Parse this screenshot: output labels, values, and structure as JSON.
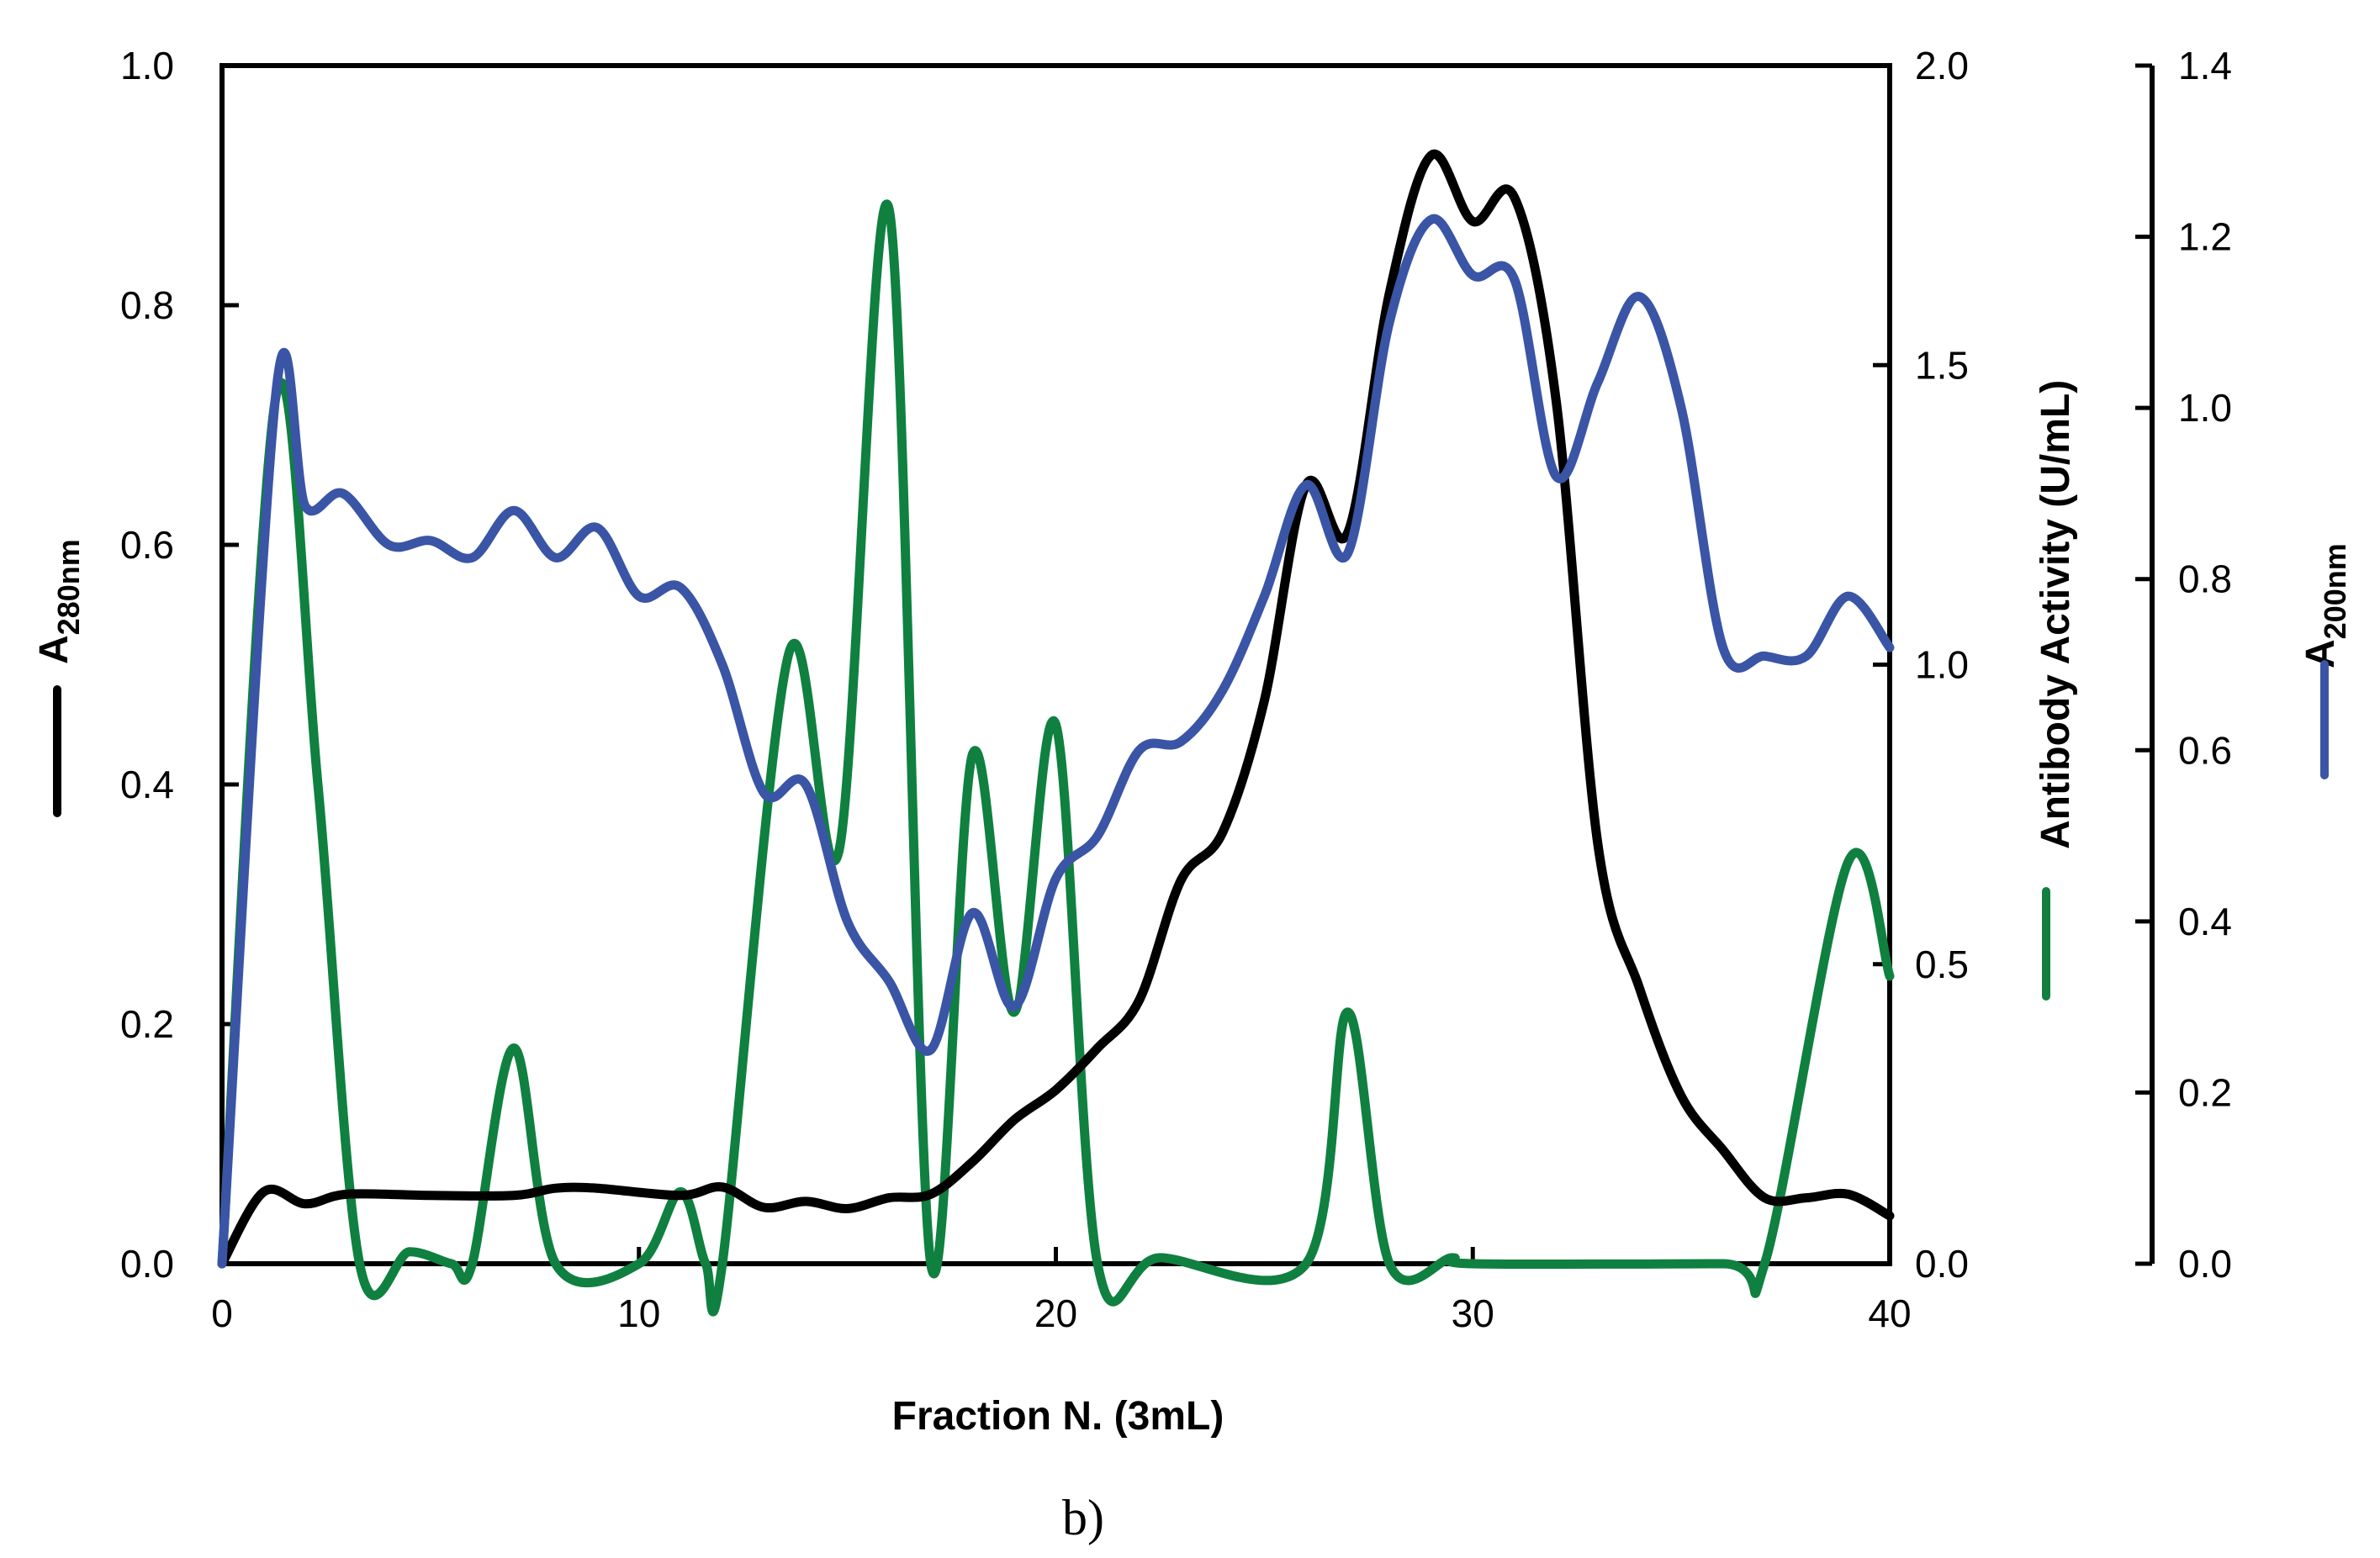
{
  "figure": {
    "panel_label": "b)",
    "xlabel": "Fraction N. (3mL)",
    "left_axis": {
      "label_main": "A",
      "label_sub": "280nm",
      "color": "#000000",
      "range": [
        0,
        1.0
      ],
      "ticks": [
        "0.0",
        "0.2",
        "0.4",
        "0.6",
        "0.8",
        "1.0"
      ]
    },
    "right_axis_1": {
      "label": "Antibody Activity (U/mL)",
      "color": "#0f8040",
      "range": [
        0,
        2.0
      ],
      "ticks": [
        "0.0",
        "0.5",
        "1.0",
        "1.5",
        "2.0"
      ]
    },
    "right_axis_2": {
      "label_main": "A",
      "label_sub": "200nm",
      "color": "#3a55a5",
      "range": [
        0,
        1.4
      ],
      "ticks": [
        "0.0",
        "0.2",
        "0.4",
        "0.6",
        "0.8",
        "1.0",
        "1.2",
        "1.4"
      ]
    },
    "x_ticks": [
      "0",
      "10",
      "20",
      "30",
      "40"
    ]
  },
  "chart_data": {
    "type": "line",
    "title": "",
    "xlabel": "Fraction N. (3mL)",
    "ylabel": "A280nm",
    "y2label": "Antibody Activity (U/mL)",
    "y3label": "A200nm",
    "xlim": [
      0,
      40
    ],
    "ylim": [
      0,
      1.0
    ],
    "y2lim": [
      0,
      2.0
    ],
    "y3lim": [
      0,
      1.4
    ],
    "grid": false,
    "legend": "axis-line swatches next to each axis title",
    "series": [
      {
        "name": "A280nm",
        "axis": "left",
        "color": "#000000",
        "x": [
          0,
          1,
          2,
          3,
          5,
          7,
          8,
          9,
          11,
          12,
          13,
          14,
          15,
          16,
          17,
          18,
          19,
          20,
          21,
          22,
          23,
          24,
          25,
          26,
          27,
          28,
          29,
          30,
          31,
          32,
          33,
          34,
          35,
          36,
          37,
          38,
          39,
          40
        ],
        "values": [
          0.0,
          0.06,
          0.05,
          0.058,
          0.057,
          0.057,
          0.063,
          0.063,
          0.057,
          0.064,
          0.047,
          0.052,
          0.046,
          0.055,
          0.058,
          0.085,
          0.12,
          0.145,
          0.18,
          0.22,
          0.32,
          0.36,
          0.47,
          0.65,
          0.61,
          0.81,
          0.925,
          0.87,
          0.89,
          0.72,
          0.35,
          0.23,
          0.14,
          0.095,
          0.055,
          0.055,
          0.058,
          0.04
        ]
      },
      {
        "name": "Antibody Activity (U/mL)",
        "axis": "right1",
        "color": "#0f8040",
        "x": [
          0,
          1.3,
          2.3,
          3.3,
          4.5,
          5.5,
          6,
          7,
          8,
          10,
          11,
          11.6,
          12,
          13.6,
          14.8,
          16,
          17,
          18,
          19,
          20,
          21,
          22.5,
          26,
          27,
          28,
          29.5,
          30,
          36,
          37,
          39,
          40
        ],
        "values": [
          0,
          1.45,
          0.8,
          0,
          0.02,
          0,
          0,
          0.36,
          0,
          0,
          0.12,
          0,
          0,
          1.02,
          0.69,
          1.76,
          0,
          0.85,
          0.42,
          0.9,
          0,
          0.01,
          0,
          0.42,
          0,
          0.01,
          0,
          0,
          0,
          0.67,
          0.48
        ]
      },
      {
        "name": "A200nm",
        "axis": "right2",
        "color": "#3a55a5",
        "x": [
          0,
          1.3,
          2,
          2.9,
          4,
          5,
          6,
          7,
          8,
          9,
          10,
          11,
          12,
          13,
          14,
          15,
          16,
          17,
          18,
          19,
          20,
          21,
          22,
          23,
          24,
          25,
          26,
          27,
          28,
          29,
          30,
          31,
          32,
          33,
          34,
          35,
          36,
          37,
          38,
          39,
          40
        ],
        "values": [
          0,
          1.02,
          0.885,
          0.9,
          0.84,
          0.845,
          0.825,
          0.88,
          0.825,
          0.86,
          0.78,
          0.79,
          0.7,
          0.55,
          0.56,
          0.4,
          0.33,
          0.25,
          0.41,
          0.3,
          0.45,
          0.5,
          0.6,
          0.61,
          0.67,
          0.78,
          0.91,
          0.83,
          1.1,
          1.22,
          1.155,
          1.15,
          0.92,
          1.03,
          1.13,
          1.0,
          0.72,
          0.71,
          0.71,
          0.78,
          0.72
        ]
      }
    ]
  }
}
